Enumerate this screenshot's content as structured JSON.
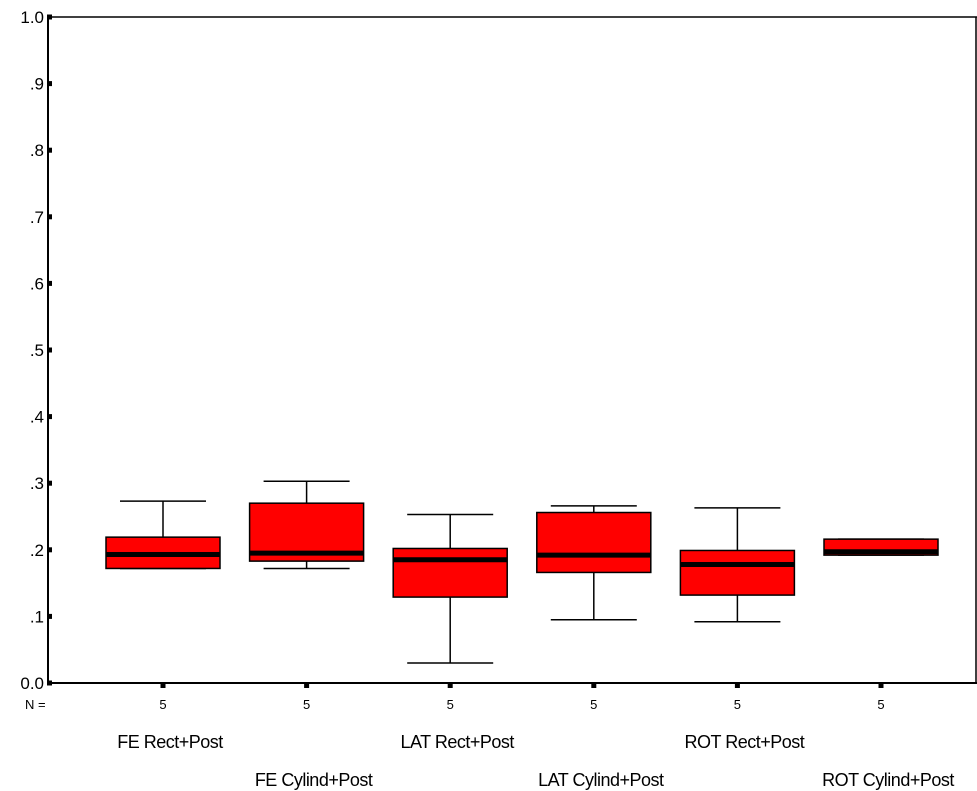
{
  "chart_data": {
    "type": "box",
    "title": "",
    "xlabel": "",
    "ylabel": "",
    "ylim": [
      0.0,
      1.0
    ],
    "yticks": [
      {
        "value": 0.0,
        "label": "0.0"
      },
      {
        "value": 0.1,
        "label": ".1"
      },
      {
        "value": 0.2,
        "label": ".2"
      },
      {
        "value": 0.3,
        "label": ".3"
      },
      {
        "value": 0.4,
        "label": ".4"
      },
      {
        "value": 0.5,
        "label": ".5"
      },
      {
        "value": 0.6,
        "label": ".6"
      },
      {
        "value": 0.7,
        "label": ".7"
      },
      {
        "value": 0.8,
        "label": ".8"
      },
      {
        "value": 0.9,
        "label": ".9"
      },
      {
        "value": 1.0,
        "label": "1.0"
      }
    ],
    "n_label": "N =",
    "box_color": "#ff0000",
    "median_color": "#000000",
    "grid": false,
    "categories": [
      {
        "name": "FE Rect+Post",
        "n": "5",
        "min": 0.172,
        "q1": 0.172,
        "median": 0.193,
        "q3": 0.219,
        "max": 0.273
      },
      {
        "name": "FE Cylind+Post",
        "n": "5",
        "min": 0.172,
        "q1": 0.183,
        "median": 0.195,
        "q3": 0.27,
        "max": 0.303
      },
      {
        "name": "LAT Rect+Post",
        "n": "5",
        "min": 0.03,
        "q1": 0.129,
        "median": 0.185,
        "q3": 0.202,
        "max": 0.253
      },
      {
        "name": "LAT Cylind+Post",
        "n": "5",
        "min": 0.095,
        "q1": 0.166,
        "median": 0.192,
        "q3": 0.256,
        "max": 0.266
      },
      {
        "name": "ROT Rect+Post",
        "n": "5",
        "min": 0.092,
        "q1": 0.132,
        "median": 0.178,
        "q3": 0.199,
        "max": 0.263
      },
      {
        "name": "ROT Cylind+Post",
        "n": "5",
        "min": 0.192,
        "q1": 0.192,
        "median": 0.197,
        "q3": 0.216,
        "max": 0.216
      }
    ]
  }
}
